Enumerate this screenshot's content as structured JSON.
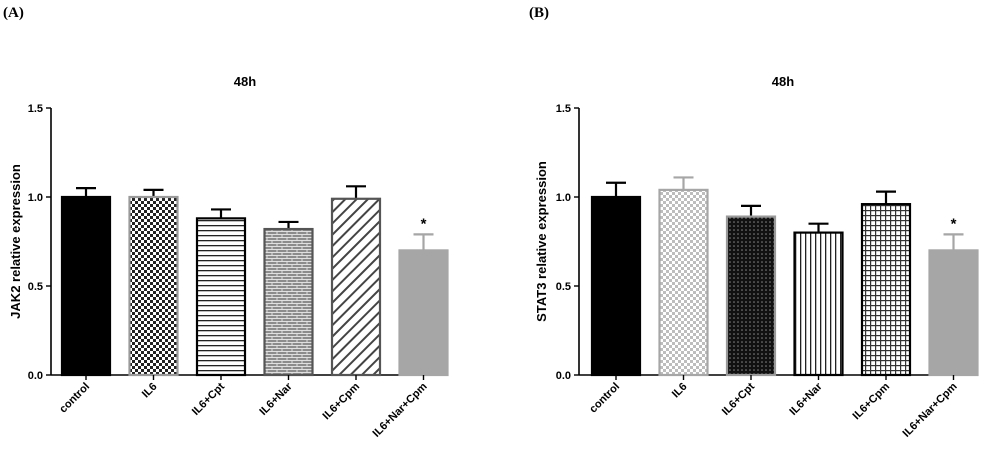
{
  "chart_data": [
    {
      "panel_label": "(A)",
      "type": "bar",
      "title": "48h",
      "xlabel": "",
      "ylabel": "JAK2 relative expression",
      "ylim": [
        0,
        1.5
      ],
      "yticks": [
        "0.0",
        "0.5",
        "1.0",
        "1.5"
      ],
      "categories": [
        "control",
        "IL6",
        "IL6+Cpt",
        "IL6+Nar",
        "IL6+Cpm",
        "IL6+Nar+Cpm"
      ],
      "values": [
        1.0,
        1.0,
        0.88,
        0.82,
        0.99,
        0.7
      ],
      "errors": [
        0.05,
        0.04,
        0.05,
        0.04,
        0.07,
        0.09
      ],
      "significance": [
        "",
        "",
        "",
        "",
        "",
        "*"
      ],
      "fills": [
        "solid-black",
        "checker",
        "horizontal-lines",
        "brick",
        "diagonal",
        "solid-gray"
      ],
      "grid": false
    },
    {
      "panel_label": "(B)",
      "type": "bar",
      "title": "48h",
      "xlabel": "",
      "ylabel": "STAT3 relative expression",
      "ylim": [
        0,
        1.5
      ],
      "yticks": [
        "0.0",
        "0.5",
        "1.0",
        "1.5"
      ],
      "categories": [
        "control",
        "IL6",
        "IL6+Cpt",
        "IL6+Nar",
        "IL6+Cpm",
        "IL6+Nar+Cpm"
      ],
      "values": [
        1.0,
        1.04,
        0.89,
        0.8,
        0.96,
        0.7
      ],
      "errors": [
        0.08,
        0.07,
        0.06,
        0.05,
        0.07,
        0.09
      ],
      "significance": [
        "",
        "",
        "",
        "",
        "",
        "*"
      ],
      "fills": [
        "solid-black",
        "light-checker",
        "dark-dots",
        "vertical-lines",
        "grid",
        "solid-gray"
      ],
      "grid": false
    }
  ],
  "colors": {
    "black": "#000000",
    "gray_fill": "#a6a6a6",
    "pattern_stroke": "#555555",
    "pattern_light": "#c0c0c0"
  }
}
